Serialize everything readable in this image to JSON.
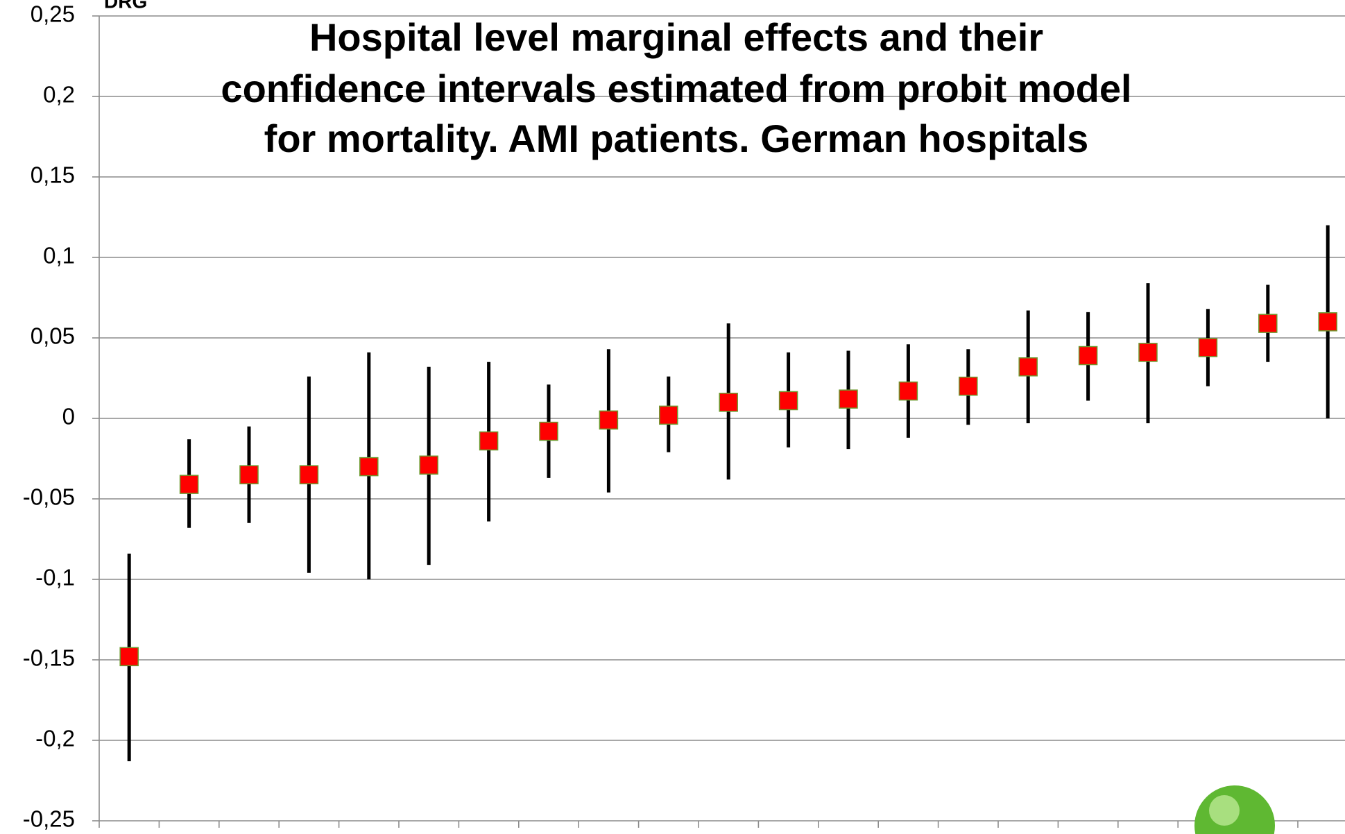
{
  "chart_data": {
    "type": "errorbar",
    "title": [
      "Hospital level marginal effects and their",
      "confidence  intervals estimated from probit model",
      "for mortality. AMI patients. German hospitals"
    ],
    "categories": [
      null,
      null,
      null,
      null,
      null,
      null,
      null,
      null,
      null,
      null,
      null,
      null,
      null,
      null,
      null,
      null,
      null,
      null,
      null,
      null,
      null
    ],
    "series": [
      {
        "color": "#ff0000",
        "values": [
          -0.148,
          -0.041,
          -0.035,
          -0.035,
          -0.03,
          -0.029,
          -0.014,
          -0.008,
          -0.001,
          0.002,
          0.01,
          0.011,
          0.012,
          0.017,
          0.02,
          0.032,
          0.039,
          0.041,
          0.044,
          0.059,
          0.06
        ],
        "lower": [
          -0.213,
          -0.068,
          -0.065,
          -0.096,
          -0.1,
          -0.091,
          -0.064,
          -0.037,
          -0.046,
          -0.021,
          -0.038,
          -0.018,
          -0.019,
          -0.012,
          -0.004,
          -0.003,
          0.011,
          -0.003,
          0.02,
          0.035,
          0.0
        ],
        "upper": [
          -0.084,
          -0.013,
          -0.005,
          0.026,
          0.041,
          0.032,
          0.035,
          0.021,
          0.043,
          0.026,
          0.059,
          0.041,
          0.042,
          0.046,
          0.043,
          0.067,
          0.066,
          0.084,
          0.068,
          0.083,
          0.12
        ]
      }
    ],
    "ylim": [
      -0.25,
      0.25
    ],
    "yticks": [
      {
        "value": -0.25,
        "label": "-0,25"
      },
      {
        "value": -0.2,
        "label": "-0,2"
      },
      {
        "value": -0.15,
        "label": "-0,15"
      },
      {
        "value": -0.1,
        "label": "-0,1"
      },
      {
        "value": -0.05,
        "label": "-0,05"
      },
      0,
      {
        "value": 0.05,
        "label": "0,05"
      },
      {
        "value": 0.1,
        "label": "0,1"
      },
      {
        "value": 0.15,
        "label": "0,15"
      },
      {
        "value": 0.2,
        "label": "0,2"
      },
      {
        "value": 0.25,
        "label": "0,25"
      }
    ],
    "grid": true
  }
}
